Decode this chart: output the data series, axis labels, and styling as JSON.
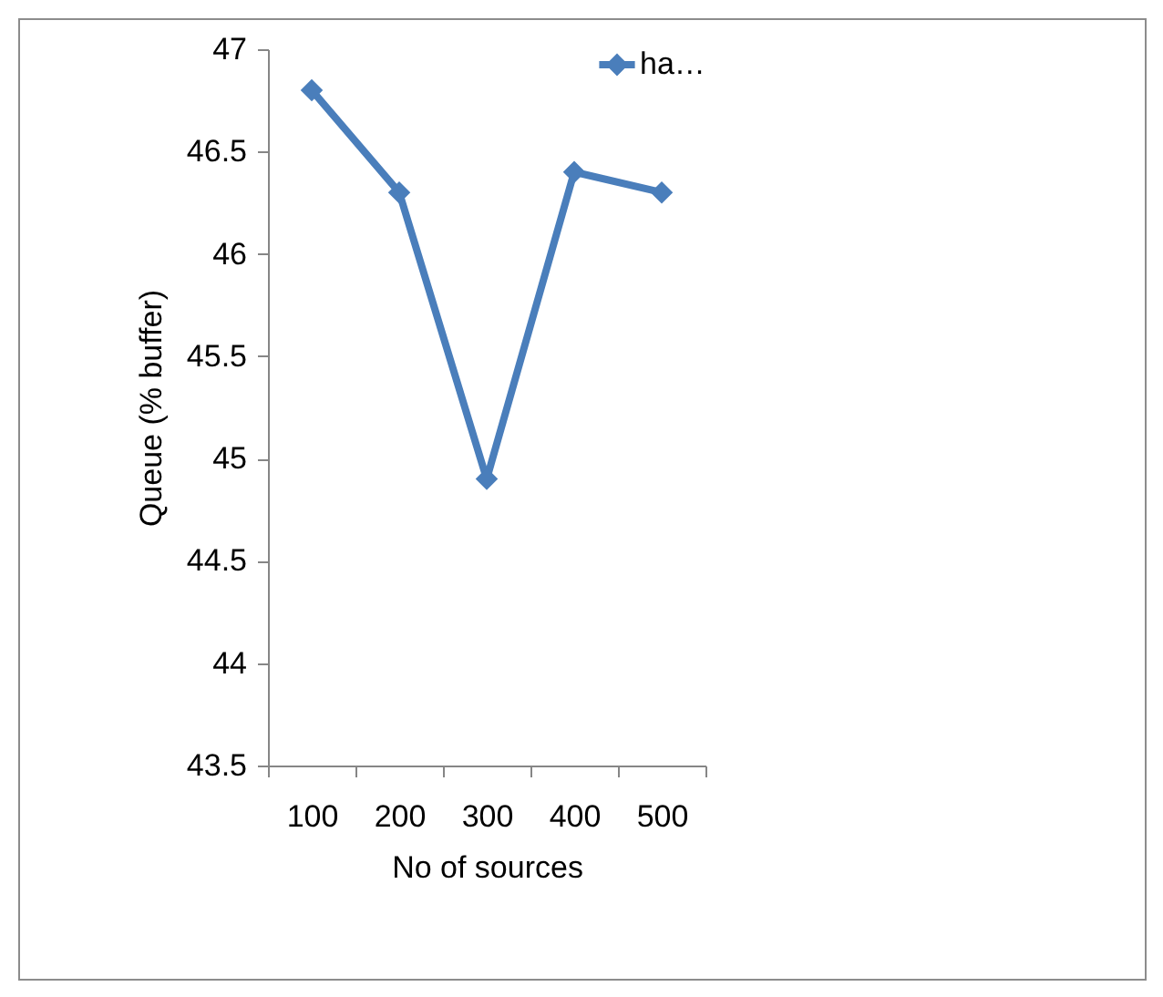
{
  "chart_data": {
    "type": "line",
    "xlabel": "No  of sources",
    "ylabel": "Queue (% buffer)",
    "categories": [
      "100",
      "200",
      "300",
      "400",
      "500"
    ],
    "series": [
      {
        "name": "ha…",
        "color": "#4a7ebb",
        "values": [
          46.8,
          46.3,
          44.9,
          46.4,
          46.3
        ]
      }
    ],
    "ylim": [
      43.5,
      47
    ],
    "yticks": [
      43.5,
      44,
      44.5,
      45,
      45.5,
      46,
      46.5,
      47
    ],
    "grid": false,
    "legend": "top right",
    "marker": "diamond",
    "line_style": "solid"
  }
}
